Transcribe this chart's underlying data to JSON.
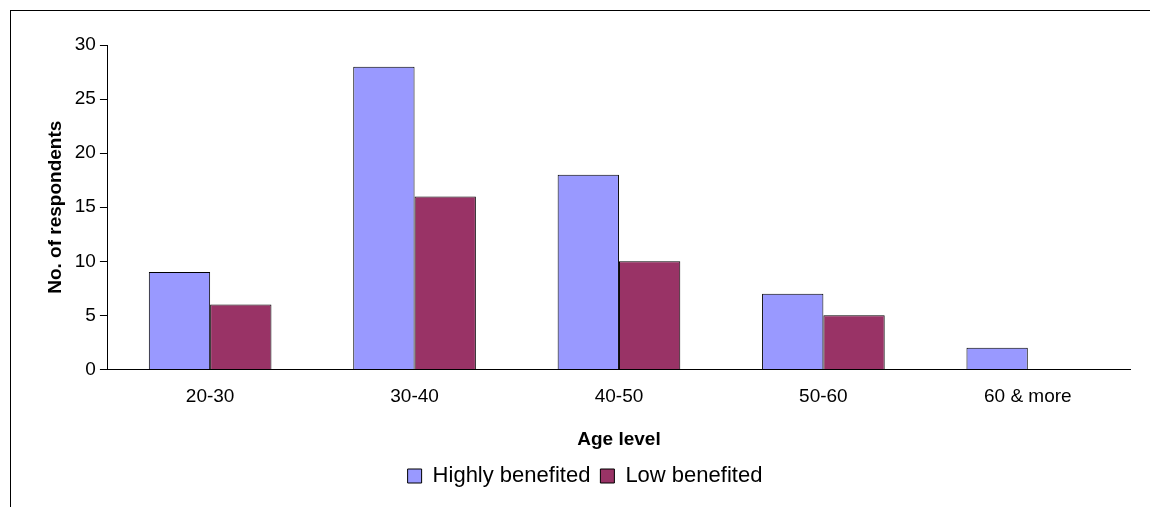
{
  "chart_data": {
    "type": "bar",
    "xlabel": "Age level",
    "ylabel": "No. of respondents",
    "categories": [
      "20-30",
      "30-40",
      "40-50",
      "50-60",
      "60 & more"
    ],
    "series": [
      {
        "name": "Highly benefited",
        "color": "#9999ff",
        "values": [
          9,
          28,
          18,
          7,
          2
        ]
      },
      {
        "name": "Low benefited",
        "color": "#993366",
        "values": [
          6,
          16,
          10,
          5,
          0
        ]
      }
    ],
    "ylim": [
      0,
      30
    ],
    "yticks": [
      0,
      5,
      10,
      15,
      20,
      25,
      30
    ],
    "legend": "bottom"
  }
}
